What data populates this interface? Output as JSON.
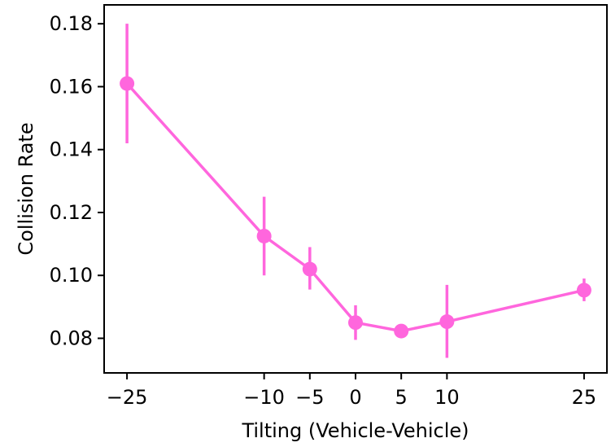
{
  "chart_data": {
    "type": "line",
    "xlabel": "Tilting (Vehicle-Vehicle)",
    "ylabel": "Collision Rate",
    "x": [
      -25,
      -10,
      -5,
      0,
      5,
      10,
      25
    ],
    "xticks": [
      -25,
      -10,
      -5,
      0,
      5,
      10,
      25
    ],
    "xtick_labels": [
      "−25",
      "−10",
      "−5",
      "0",
      "5",
      "10",
      "25"
    ],
    "yticks": [
      0.08,
      0.1,
      0.12,
      0.14,
      0.16,
      0.18
    ],
    "ytick_labels": [
      "0.08",
      "0.10",
      "0.12",
      "0.14",
      "0.16",
      "0.18"
    ],
    "xlim": [
      -27.5,
      27.5
    ],
    "ylim": [
      0.069,
      0.186
    ],
    "grid": false,
    "series": [
      {
        "color": "#ff66dd",
        "values": [
          0.161,
          0.1125,
          0.102,
          0.085,
          0.0823,
          0.0853,
          0.0953
        ],
        "err_low": [
          0.142,
          0.1,
          0.0955,
          0.0795,
          0.0823,
          0.0738,
          0.0918
        ],
        "err_high": [
          0.18,
          0.125,
          0.109,
          0.0905,
          0.0823,
          0.097,
          0.099
        ]
      }
    ]
  }
}
